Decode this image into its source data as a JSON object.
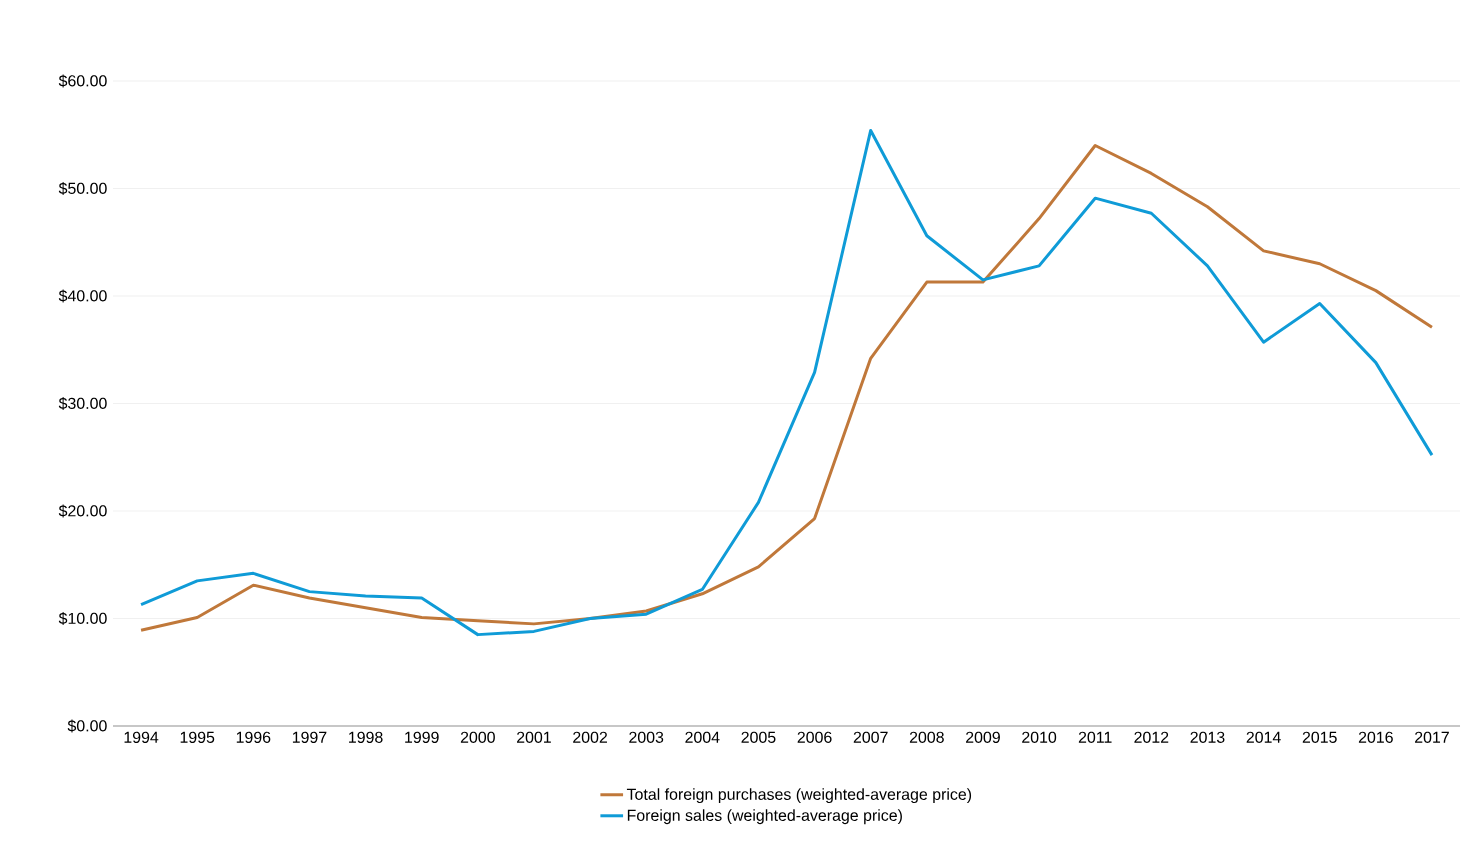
{
  "chart_data": {
    "type": "line",
    "categories": [
      "1994",
      "1995",
      "1996",
      "1997",
      "1998",
      "1999",
      "2000",
      "2001",
      "2002",
      "2003",
      "2004",
      "2005",
      "2006",
      "2007",
      "2008",
      "2009",
      "2010",
      "2011",
      "2012",
      "2013",
      "2014",
      "2015",
      "2016",
      "2017"
    ],
    "series": [
      {
        "name": "Total foreign purchases (weighted-average price)",
        "color": "#c0783a",
        "values": [
          8.9,
          10.1,
          13.1,
          11.9,
          11.0,
          10.1,
          9.8,
          9.5,
          10.0,
          10.7,
          12.3,
          14.8,
          19.3,
          34.2,
          41.3,
          41.3,
          47.2,
          54.0,
          51.4,
          48.3,
          44.2,
          43.0,
          40.5,
          37.1
        ]
      },
      {
        "name": "Foreign sales (weighted-average price)",
        "color": "#0f9bd7",
        "values": [
          11.3,
          13.5,
          14.2,
          12.5,
          12.1,
          11.9,
          8.5,
          8.8,
          10.0,
          10.4,
          12.7,
          20.8,
          32.9,
          55.4,
          45.6,
          41.5,
          42.8,
          49.1,
          47.7,
          42.8,
          35.7,
          39.3,
          33.8,
          25.2
        ]
      }
    ],
    "ylim": [
      0,
      60
    ],
    "yticks": [
      {
        "value": 0,
        "label": "$0.00"
      },
      {
        "value": 10,
        "label": "$10.00"
      },
      {
        "value": 20,
        "label": "$20.00"
      },
      {
        "value": 30,
        "label": "$30.00"
      },
      {
        "value": 40,
        "label": "$40.00"
      },
      {
        "value": 50,
        "label": "$50.00"
      },
      {
        "value": 60,
        "label": "$60.00"
      }
    ],
    "grid": "y",
    "legend": "bottom",
    "marker": "none",
    "line_style": "solid"
  }
}
